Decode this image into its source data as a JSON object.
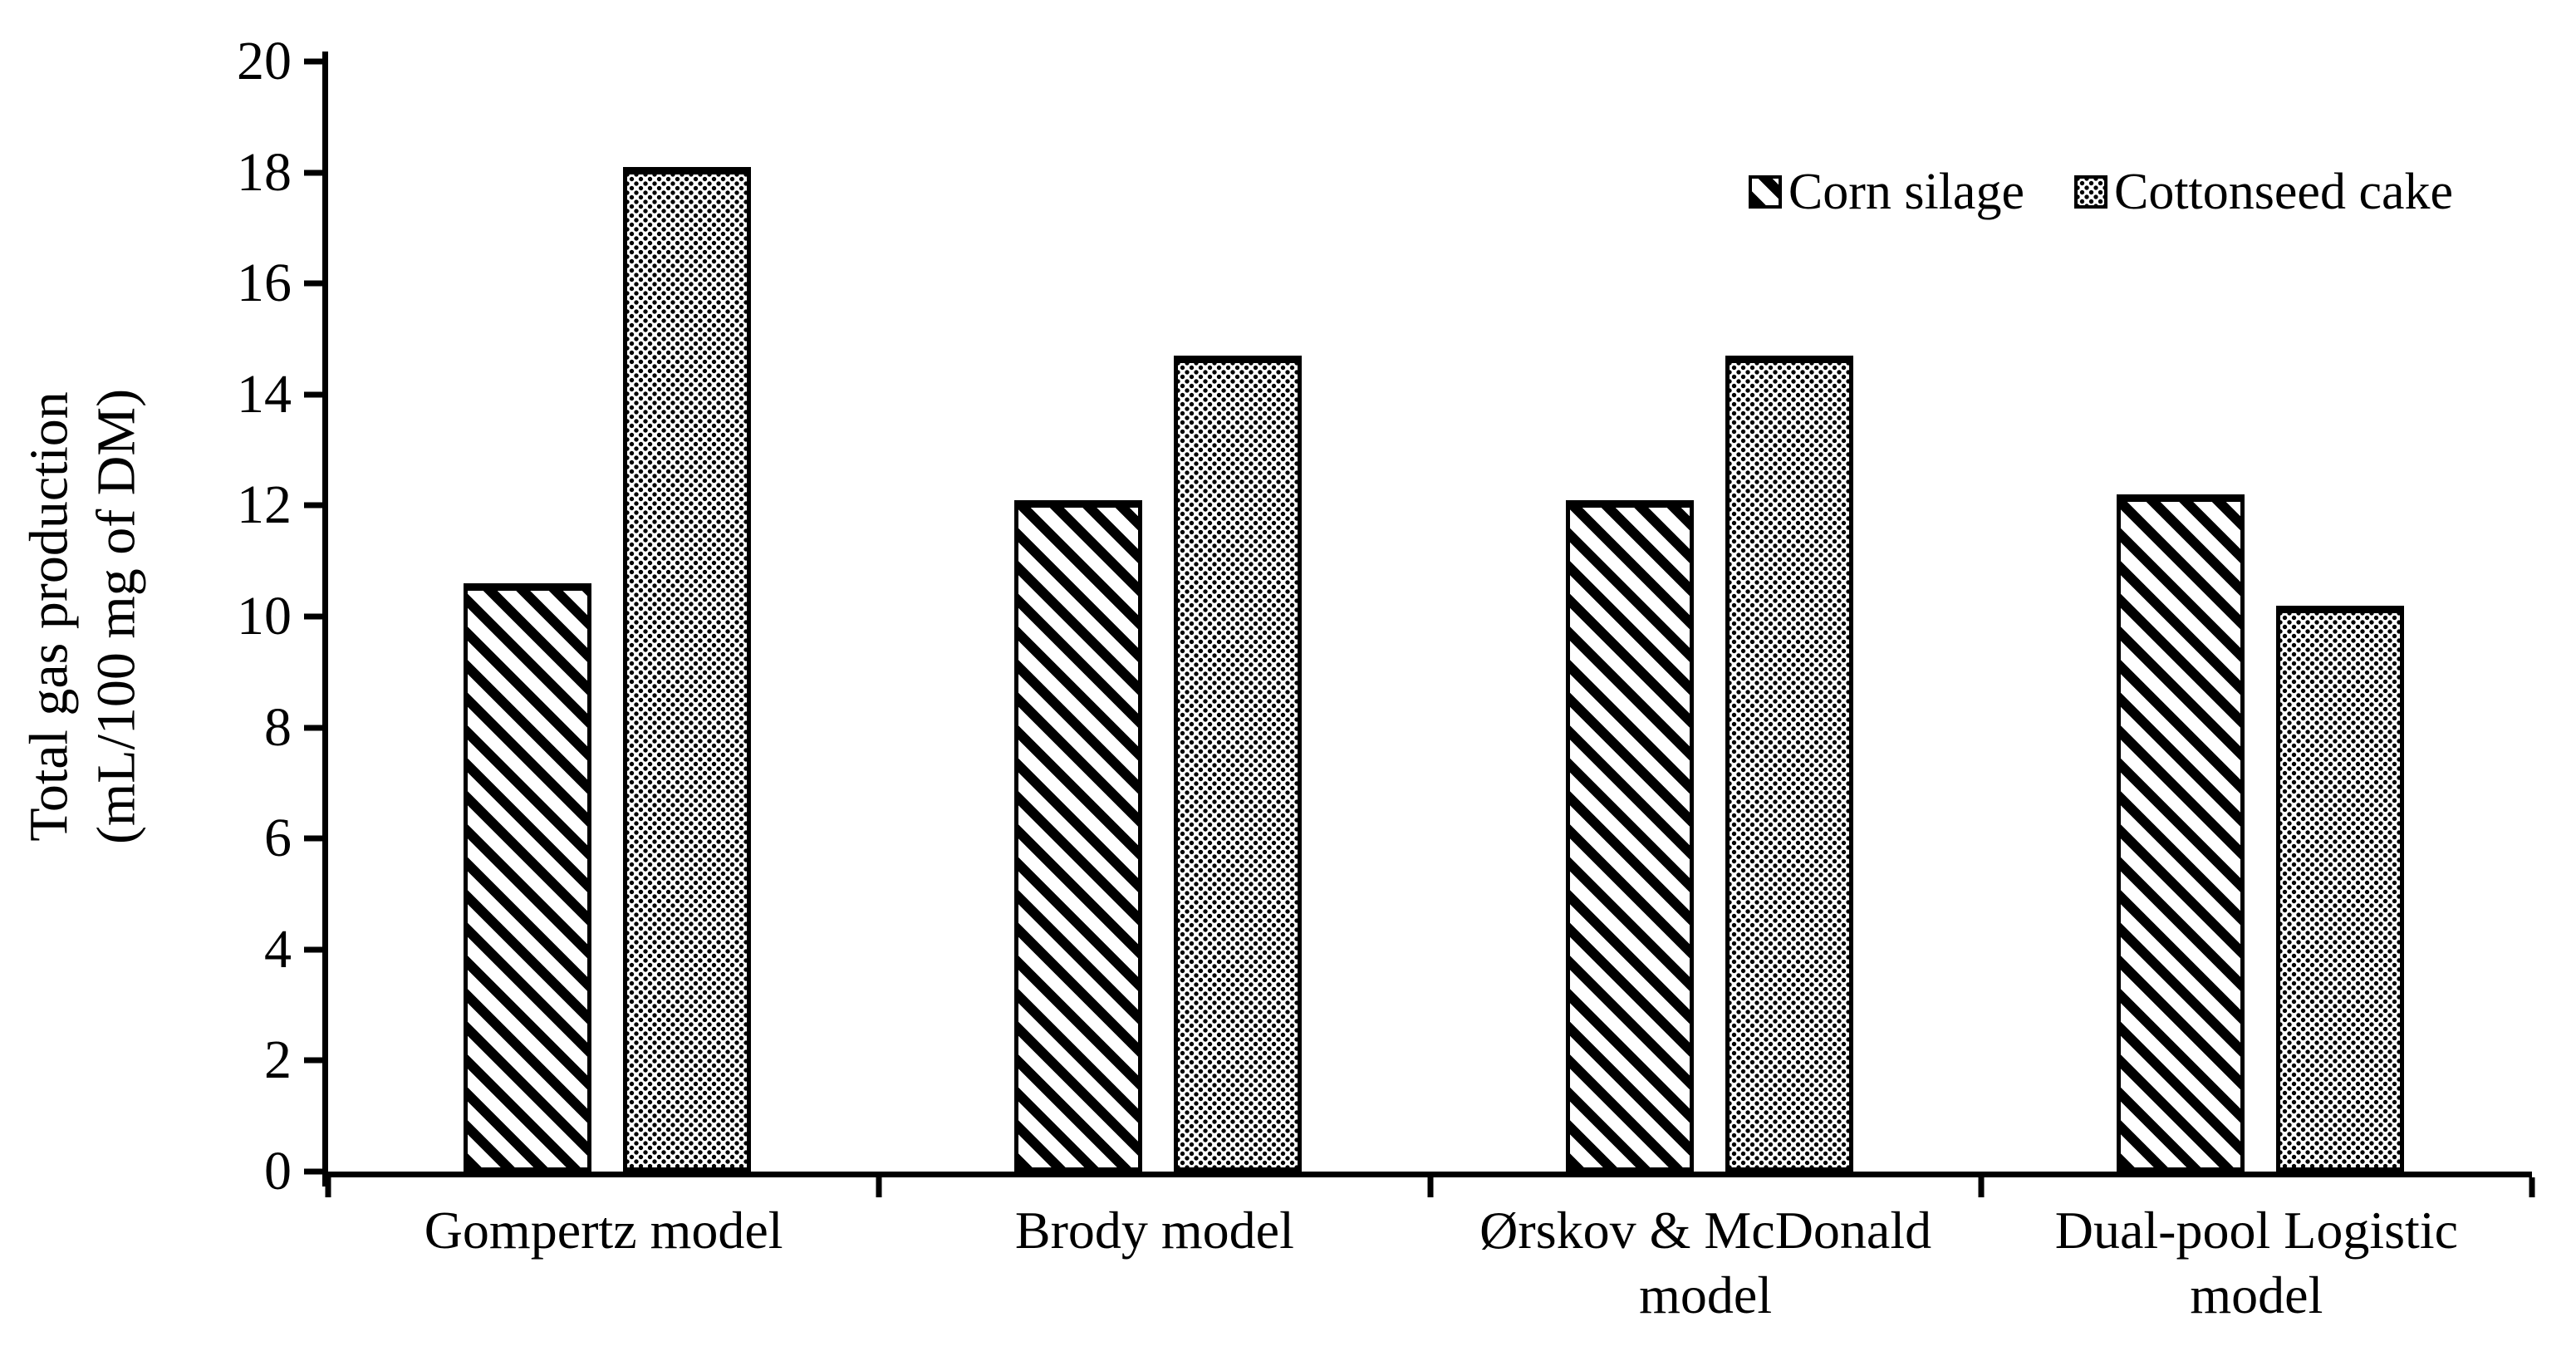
{
  "chart_data": {
    "type": "bar",
    "title": "",
    "ylabel_lines": [
      "Total gas production",
      "(mL/100 mg of DM)"
    ],
    "ylim": [
      0,
      20
    ],
    "y_ticks": [
      0,
      2,
      4,
      6,
      8,
      10,
      12,
      14,
      16,
      18,
      20
    ],
    "grid": false,
    "legend_position": "top-right",
    "background": "#ffffff",
    "foreground": "#000000",
    "categories": [
      {
        "name": "Gompertz model",
        "lines": [
          "Gompertz model"
        ]
      },
      {
        "name": "Brody model",
        "lines": [
          "Brody model"
        ]
      },
      {
        "name": "Ørskov & McDonald model",
        "lines": [
          "Ørskov & McDonald",
          "model"
        ]
      },
      {
        "name": "Dual-pool Logistic model",
        "lines": [
          "Dual-pool Logistic",
          "model"
        ]
      }
    ],
    "series": [
      {
        "name": "Corn silage",
        "pattern": "diagonal-hatch",
        "values": [
          10.6,
          12.1,
          12.1,
          12.2
        ]
      },
      {
        "name": "Cottonseed cake",
        "pattern": "dot-grid",
        "values": [
          18.1,
          14.7,
          14.7,
          10.2
        ]
      }
    ]
  }
}
